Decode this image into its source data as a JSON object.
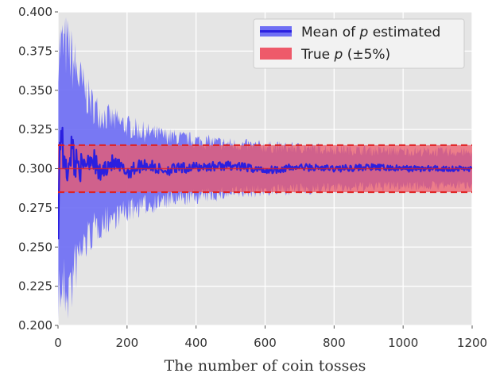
{
  "chart_data": {
    "type": "line",
    "title": "",
    "xlabel": "The number of coin tosses",
    "ylabel": "",
    "xlim": [
      0,
      1200
    ],
    "ylim": [
      0.2,
      0.4
    ],
    "xticks": [
      0,
      200,
      400,
      600,
      800,
      1000,
      1200
    ],
    "xtick_labels": [
      "0",
      "200",
      "400",
      "600",
      "800",
      "1000",
      "1200"
    ],
    "yticks": [
      0.2,
      0.225,
      0.25,
      0.275,
      0.3,
      0.325,
      0.35,
      0.375,
      0.4
    ],
    "ytick_labels": [
      "0.200",
      "0.225",
      "0.250",
      "0.275",
      "0.300",
      "0.325",
      "0.350",
      "0.375",
      "0.400"
    ],
    "grid": true,
    "legend_position": "top-right",
    "true_p": 0.3,
    "band_pct": 5,
    "band_lower": 0.285,
    "band_upper": 0.315,
    "series": [
      {
        "name": "Mean of p estimated",
        "color": "#2a1fe0",
        "band_color": "#6f6ff4",
        "x": [
          1,
          5,
          10,
          15,
          20,
          25,
          30,
          40,
          50,
          60,
          70,
          80,
          100,
          120,
          150,
          200,
          250,
          300,
          400,
          500,
          600,
          700,
          800,
          900,
          1000,
          1100,
          1200
        ],
        "mean": [
          0.269,
          0.31,
          0.332,
          0.3,
          0.318,
          0.283,
          0.31,
          0.313,
          0.303,
          0.306,
          0.297,
          0.305,
          0.308,
          0.296,
          0.304,
          0.298,
          0.303,
          0.299,
          0.301,
          0.302,
          0.299,
          0.301,
          0.3,
          0.301,
          0.3,
          0.3,
          0.3
        ],
        "lower": [
          0.2,
          0.2,
          0.2,
          0.2,
          0.2,
          0.2,
          0.2,
          0.205,
          0.218,
          0.228,
          0.235,
          0.24,
          0.248,
          0.254,
          0.259,
          0.265,
          0.27,
          0.273,
          0.277,
          0.28,
          0.282,
          0.283,
          0.284,
          0.285,
          0.286,
          0.286,
          0.287
        ],
        "upper": [
          0.4,
          0.4,
          0.4,
          0.4,
          0.4,
          0.4,
          0.398,
          0.39,
          0.383,
          0.375,
          0.368,
          0.362,
          0.352,
          0.346,
          0.341,
          0.335,
          0.33,
          0.327,
          0.323,
          0.32,
          0.318,
          0.317,
          0.316,
          0.315,
          0.314,
          0.314,
          0.313
        ]
      },
      {
        "name": "True p (±5%)",
        "color": "#e02020",
        "fill_color": "#ee5a6a"
      }
    ],
    "legend": [
      {
        "label_prefix": "Mean of ",
        "label_italic": "p",
        "label_suffix": " estimated"
      },
      {
        "label_prefix": "True ",
        "label_italic": "p",
        "label_suffix": " (±5%)"
      }
    ]
  }
}
